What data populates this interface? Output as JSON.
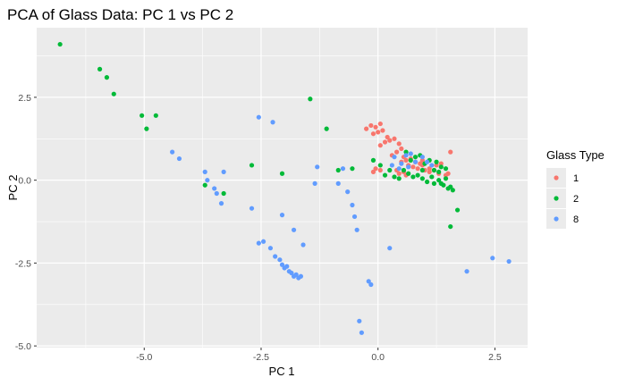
{
  "chart_data": {
    "type": "scatter",
    "title": "PCA of Glass Data: PC 1 vs PC 2",
    "xlabel": "PC 1",
    "ylabel": "PC 2",
    "xlim": [
      -7.3,
      3.2
    ],
    "ylim": [
      -5.05,
      4.6
    ],
    "x_ticks": [
      -5.0,
      -2.5,
      0.0,
      2.5
    ],
    "x_tick_labels": [
      "-5.0",
      "-2.5",
      "0.0",
      "2.5"
    ],
    "y_ticks": [
      -5.0,
      -2.5,
      0.0,
      2.5
    ],
    "y_tick_labels": [
      "-5.0",
      "-2.5",
      "0.0",
      "2.5"
    ],
    "grid": true,
    "background": "#ebebeb",
    "legend": {
      "title": "Glass Type",
      "position": "right"
    },
    "series": [
      {
        "name": "1",
        "color": "#f8766d",
        "points": [
          [
            -0.25,
            1.55
          ],
          [
            -0.15,
            1.65
          ],
          [
            -0.05,
            1.6
          ],
          [
            0.05,
            1.7
          ],
          [
            0.1,
            1.5
          ],
          [
            0.0,
            1.45
          ],
          [
            -0.1,
            1.4
          ],
          [
            0.2,
            1.3
          ],
          [
            0.25,
            1.2
          ],
          [
            0.35,
            1.25
          ],
          [
            0.15,
            1.15
          ],
          [
            0.05,
            1.05
          ],
          [
            0.45,
            1.1
          ],
          [
            0.5,
            0.95
          ],
          [
            0.4,
            0.85
          ],
          [
            0.3,
            0.75
          ],
          [
            0.55,
            0.7
          ],
          [
            0.6,
            0.6
          ],
          [
            0.7,
            0.65
          ],
          [
            0.5,
            0.55
          ],
          [
            0.8,
            0.55
          ],
          [
            0.9,
            0.5
          ],
          [
            0.65,
            0.45
          ],
          [
            0.75,
            0.4
          ],
          [
            0.85,
            0.35
          ],
          [
            0.95,
            0.45
          ],
          [
            1.0,
            0.3
          ],
          [
            1.1,
            0.35
          ],
          [
            1.2,
            0.3
          ],
          [
            0.55,
            0.25
          ],
          [
            0.4,
            0.3
          ],
          [
            0.45,
            0.2
          ],
          [
            -0.05,
            0.35
          ],
          [
            0.05,
            0.3
          ],
          [
            -0.1,
            0.25
          ],
          [
            1.35,
            0.5
          ],
          [
            1.5,
            0.2
          ],
          [
            1.55,
            0.85
          ],
          [
            1.45,
            0.15
          ],
          [
            1.3,
            0.2
          ],
          [
            0.6,
            0.15
          ],
          [
            1.1,
            0.25
          ],
          [
            1.25,
            0.45
          ],
          [
            0.95,
            0.6
          ]
        ]
      },
      {
        "name": "2",
        "color": "#00ba38",
        "points": [
          [
            -6.8,
            4.1
          ],
          [
            -5.95,
            3.35
          ],
          [
            -5.8,
            3.1
          ],
          [
            -5.65,
            2.6
          ],
          [
            -5.05,
            1.95
          ],
          [
            -4.95,
            1.55
          ],
          [
            -4.75,
            1.95
          ],
          [
            -3.7,
            -0.15
          ],
          [
            -3.3,
            -0.4
          ],
          [
            -2.7,
            0.45
          ],
          [
            -2.05,
            0.2
          ],
          [
            -1.45,
            2.45
          ],
          [
            -1.1,
            1.55
          ],
          [
            -0.85,
            0.3
          ],
          [
            -0.55,
            0.35
          ],
          [
            -0.1,
            0.6
          ],
          [
            0.05,
            0.45
          ],
          [
            0.15,
            0.15
          ],
          [
            0.25,
            0.3
          ],
          [
            0.35,
            0.1
          ],
          [
            0.45,
            0.05
          ],
          [
            0.55,
            0.3
          ],
          [
            0.65,
            0.2
          ],
          [
            0.75,
            0.1
          ],
          [
            0.85,
            0.15
          ],
          [
            0.95,
            0.05
          ],
          [
            1.05,
            -0.05
          ],
          [
            1.15,
            0.1
          ],
          [
            1.2,
            -0.1
          ],
          [
            1.3,
            0.0
          ],
          [
            1.4,
            -0.15
          ],
          [
            1.45,
            0.05
          ],
          [
            1.55,
            -0.2
          ],
          [
            1.6,
            -0.3
          ],
          [
            1.7,
            -0.9
          ],
          [
            1.55,
            -1.4
          ],
          [
            1.35,
            0.4
          ],
          [
            1.25,
            0.55
          ],
          [
            1.1,
            0.6
          ],
          [
            1.0,
            0.5
          ],
          [
            0.9,
            0.75
          ],
          [
            0.8,
            0.7
          ],
          [
            0.7,
            0.6
          ],
          [
            1.45,
            0.35
          ],
          [
            1.3,
            0.25
          ],
          [
            0.6,
            0.85
          ],
          [
            0.95,
            0.3
          ],
          [
            1.2,
            0.3
          ],
          [
            1.35,
            -0.1
          ],
          [
            1.5,
            -0.25
          ]
        ]
      },
      {
        "name": "8",
        "color": "#619cff",
        "points": [
          [
            -4.4,
            0.85
          ],
          [
            -4.25,
            0.65
          ],
          [
            -3.7,
            0.25
          ],
          [
            -3.65,
            0.0
          ],
          [
            -3.45,
            -0.4
          ],
          [
            -3.35,
            -0.7
          ],
          [
            -3.3,
            0.25
          ],
          [
            -3.5,
            -0.25
          ],
          [
            -2.7,
            -0.85
          ],
          [
            -2.55,
            1.9
          ],
          [
            -2.25,
            1.75
          ],
          [
            -2.05,
            -1.05
          ],
          [
            -2.55,
            -1.9
          ],
          [
            -2.45,
            -1.85
          ],
          [
            -2.3,
            -2.05
          ],
          [
            -2.2,
            -2.3
          ],
          [
            -2.1,
            -2.4
          ],
          [
            -2.05,
            -2.55
          ],
          [
            -2.0,
            -2.65
          ],
          [
            -1.95,
            -2.6
          ],
          [
            -1.9,
            -2.75
          ],
          [
            -1.85,
            -2.8
          ],
          [
            -1.8,
            -2.9
          ],
          [
            -1.75,
            -2.85
          ],
          [
            -1.7,
            -2.95
          ],
          [
            -1.65,
            -2.9
          ],
          [
            -1.6,
            -1.95
          ],
          [
            -1.8,
            -1.5
          ],
          [
            -1.3,
            0.4
          ],
          [
            -1.35,
            -0.1
          ],
          [
            -0.85,
            -0.1
          ],
          [
            -0.75,
            0.35
          ],
          [
            -0.65,
            -0.35
          ],
          [
            -0.55,
            -0.75
          ],
          [
            -0.5,
            -1.1
          ],
          [
            -0.45,
            -1.5
          ],
          [
            -0.4,
            -4.25
          ],
          [
            -0.35,
            -4.6
          ],
          [
            -0.2,
            -3.05
          ],
          [
            -0.15,
            -3.15
          ],
          [
            0.25,
            -2.05
          ],
          [
            0.35,
            0.7
          ],
          [
            0.5,
            0.5
          ],
          [
            0.65,
            0.4
          ],
          [
            0.8,
            0.55
          ],
          [
            0.95,
            0.7
          ],
          [
            1.05,
            0.55
          ],
          [
            1.15,
            0.45
          ],
          [
            0.6,
            0.75
          ],
          [
            0.7,
            0.8
          ],
          [
            0.3,
            0.45
          ],
          [
            1.9,
            -2.75
          ],
          [
            2.45,
            -2.35
          ],
          [
            2.8,
            -2.45
          ],
          [
            0.45,
            0.35
          ]
        ]
      }
    ]
  }
}
